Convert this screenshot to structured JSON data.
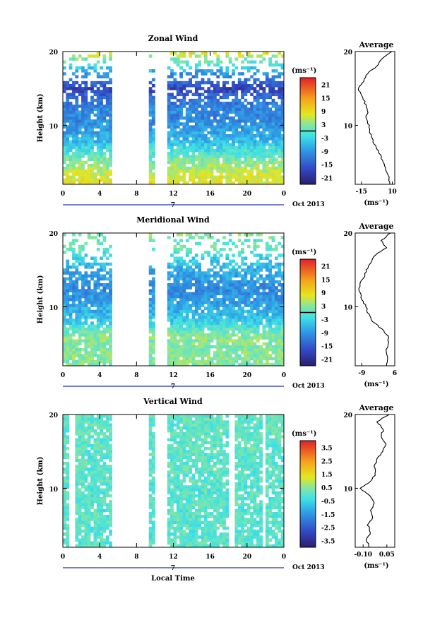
{
  "figure": {
    "xlabel": "Local Time",
    "date_label": "Oct 2013",
    "day_label": "7",
    "x_ticks": [
      "0",
      "4",
      "8",
      "12",
      "16",
      "20",
      "0"
    ],
    "y_ticks": [
      "10",
      "20"
    ],
    "ylabel": "Height (km)",
    "unit_label": "(ms⁻¹)",
    "avg_title": "Average"
  },
  "chart_data": [
    {
      "type": "heatmap",
      "title": "Zonal Wind",
      "xlabel": "",
      "ylabel": "Height (km)",
      "xlim": [
        0,
        24
      ],
      "ylim": [
        2,
        20
      ],
      "colorbar": {
        "label": "(ms⁻¹)",
        "ticks": [
          "21",
          "15",
          "9",
          "3",
          "-3",
          "-9",
          "-15",
          "-21"
        ],
        "range": [
          -24,
          24
        ],
        "zero_line": 0
      },
      "data_gaps_hours": [
        [
          5.2,
          9.3
        ],
        [
          9.9,
          11.4
        ]
      ],
      "profile": {
        "title": "Average",
        "xlabel": "(ms⁻¹)",
        "xticks": [
          "-15",
          "10"
        ],
        "xlim": [
          -20,
          12
        ],
        "heights": [
          2,
          3,
          4,
          5,
          6,
          7,
          8,
          9,
          10,
          11,
          12,
          13,
          14,
          15,
          16,
          17,
          18,
          19,
          20
        ],
        "values": [
          8,
          7,
          5,
          3,
          0,
          -3,
          -6,
          -8,
          -9,
          -11,
          -10,
          -12,
          -14,
          -18,
          -13,
          -10,
          -3,
          2,
          9
        ]
      }
    },
    {
      "type": "heatmap",
      "title": "Meridional Wind",
      "xlabel": "",
      "ylabel": "Height (km)",
      "xlim": [
        0,
        24
      ],
      "ylim": [
        2,
        20
      ],
      "colorbar": {
        "label": "(ms⁻¹)",
        "ticks": [
          "21",
          "15",
          "9",
          "3",
          "-3",
          "-9",
          "-15",
          "-21"
        ],
        "range": [
          -24,
          24
        ],
        "zero_line": 0
      },
      "data_gaps_hours": [
        [
          5.2,
          9.3
        ],
        [
          9.9,
          11.4
        ]
      ],
      "profile": {
        "title": "Average",
        "xlabel": "(ms⁻¹)",
        "xticks": [
          "-9",
          "6"
        ],
        "xlim": [
          -12,
          6
        ],
        "heights": [
          2,
          3,
          4,
          5,
          6,
          7,
          8,
          9,
          10,
          11,
          12,
          13,
          14,
          15,
          16,
          17,
          18,
          19,
          20
        ],
        "values": [
          2,
          3,
          2,
          3,
          3,
          0,
          -4,
          -6,
          -7,
          -9,
          -10,
          -10,
          -8,
          -7,
          -5,
          -3,
          2,
          0,
          4
        ]
      }
    },
    {
      "type": "heatmap",
      "title": "Vertical Wind",
      "xlabel": "Local Time",
      "ylabel": "Height (km)",
      "xlim": [
        0,
        24
      ],
      "ylim": [
        2,
        20
      ],
      "colorbar": {
        "label": "(ms⁻¹)",
        "ticks": [
          "3.5",
          "2.5",
          "1.5",
          "0.5",
          "-0.5",
          "-1.5",
          "-2.5",
          "-3.5"
        ],
        "range": [
          -4,
          4
        ]
      },
      "data_gaps_hours": [
        [
          0.8,
          1.2
        ],
        [
          5.2,
          9.3
        ],
        [
          9.9,
          11.4
        ],
        [
          18.1,
          18.7
        ],
        [
          21.6,
          22.1
        ]
      ],
      "profile": {
        "title": "Average",
        "xlabel": "(ms⁻¹)",
        "xticks": [
          "-0.10",
          "0.05"
        ],
        "xlim": [
          -0.15,
          0.1
        ],
        "heights": [
          2,
          3,
          4,
          5,
          6,
          7,
          8,
          9,
          10,
          11,
          12,
          13,
          14,
          15,
          16,
          17,
          18,
          19,
          20
        ],
        "values": [
          -0.06,
          -0.08,
          -0.05,
          -0.07,
          -0.04,
          -0.05,
          -0.03,
          -0.06,
          -0.12,
          -0.05,
          -0.02,
          -0.03,
          -0.01,
          0.02,
          0.05,
          0.01,
          0.03,
          -0.01,
          0.06
        ]
      }
    }
  ]
}
